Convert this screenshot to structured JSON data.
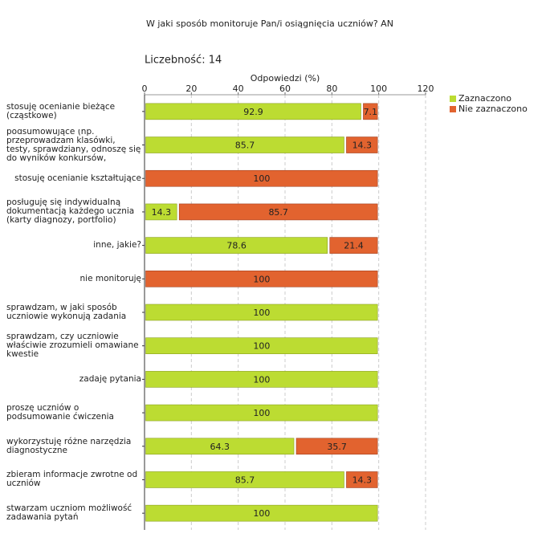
{
  "chart_data": {
    "type": "stacked-barh",
    "title": "W jaki sposób monitoruje Pan/i osiągnięcia uczniów?  AN",
    "subtitle": "Liczebność: 14",
    "x_label": "Odpowiedzi (%)",
    "categories": [
      "stosuję ocenianie bieżące (cząstkowe)",
      "stosuję ocenianie podsumowujące (np. przeprowadzam klasówki, testy, sprawdziany, odnoszę się do wyników konkursów, olimpiad)",
      "stosuję ocenianie kształtujące",
      "posługuję się indywidualną dokumentacją każdego ucznia (karty diagnozy, portfolio)",
      "inne, jakie?",
      "nie monitoruję",
      "sprawdzam, w jaki sposób uczniowie wykonują zadania",
      "sprawdzam, czy uczniowie właściwie zrozumieli omawiane kwestie",
      "zadaję pytania",
      "proszę uczniów o podsumowanie ćwiczenia",
      "wykorzystuję różne narzędzia diagnostyczne",
      "zbieram informacje zwrotne od uczniów",
      "stwarzam uczniom możliwość zadawania pytań"
    ],
    "series": [
      {
        "name": "Zaznaczono",
        "color": "#bcdc32",
        "values": [
          92.9,
          85.7,
          0,
          14.3,
          78.6,
          0,
          100,
          100,
          100,
          100,
          64.3,
          85.7,
          100
        ]
      },
      {
        "name": "Nie zaznaczono",
        "color": "#e2632f",
        "values": [
          7.1,
          14.3,
          100,
          85.7,
          21.4,
          100,
          0,
          0,
          0,
          0,
          35.7,
          14.3,
          0
        ]
      }
    ],
    "xlim": [
      0,
      120
    ],
    "xticks": [
      0,
      20,
      40,
      60,
      80,
      100,
      120
    ],
    "grid": true,
    "legend": "upper right"
  }
}
